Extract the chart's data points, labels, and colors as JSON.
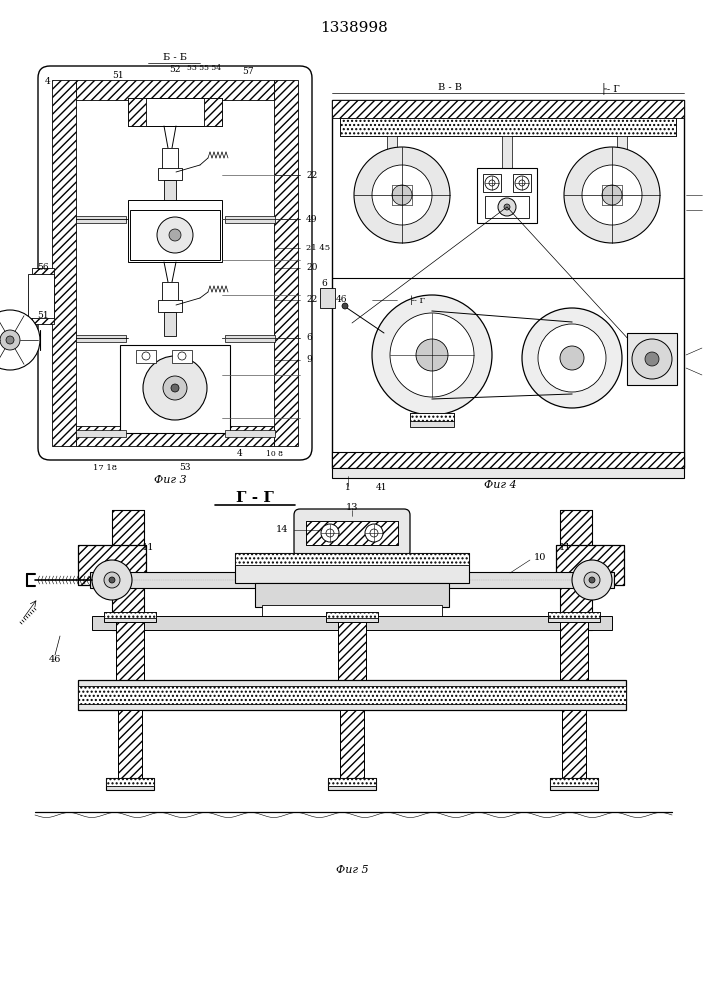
{
  "title": "1338998",
  "bg_color": "#ffffff",
  "lc": "#000000",
  "fig3_caption": "Фиг 3",
  "fig4_caption": "Фиг 4",
  "fig5_caption": "Фиг 5",
  "bb_label": "Б - Б",
  "bb_sub": "52",
  "vv_label": "В - В",
  "g_label": "├- Г",
  "gg_label": "Г - Г"
}
